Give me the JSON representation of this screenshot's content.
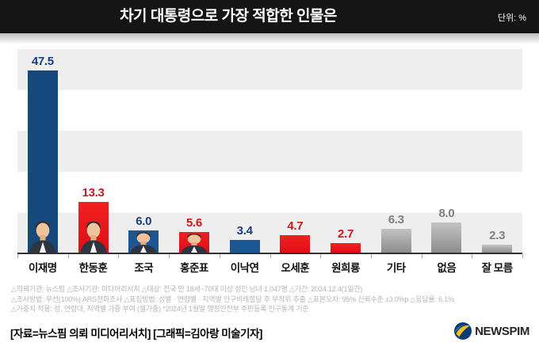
{
  "header": {
    "title": "차기 대통령으로 가장 적합한 인물은",
    "unit": "단위: %"
  },
  "chart_data": {
    "type": "bar",
    "title": "차기 대통령으로 가장 적합한 인물은",
    "unit": "%",
    "categories": [
      "이재명",
      "한동훈",
      "조국",
      "홍준표",
      "이낙연",
      "오세훈",
      "원희룡",
      "기타",
      "없음",
      "잘 모름"
    ],
    "values": [
      47.5,
      13.3,
      6.0,
      5.6,
      3.4,
      4.7,
      2.7,
      6.3,
      8.0,
      2.3
    ],
    "bar_styles": [
      "blue-dark",
      "red",
      "blue",
      "red",
      "blue",
      "red",
      "red",
      "gray",
      "gray",
      "gray"
    ],
    "has_photo": [
      true,
      true,
      true,
      true,
      false,
      false,
      false,
      false,
      false,
      false
    ],
    "ylim": [
      0,
      53
    ],
    "grid": "horizontal-stripes",
    "xlabel": "",
    "ylabel": ""
  },
  "colors": {
    "header_bg": "#151515",
    "stripe_gray": "#eeeeee",
    "bar_blue_dark": "#15497E",
    "bar_blue": "#1C5795",
    "bar_red": "#E6131B",
    "bar_gray_top": "#C3C3C3",
    "bar_gray_bottom": "#8A8A8A",
    "label_blue": "#1B3F7D",
    "label_red": "#D2161E",
    "label_gray": "#7F7F7F"
  },
  "footnotes": [
    "△의뢰기관: 뉴스핌  △조사기관: 미디어리서치  △대상: 전국 만 18세~70대 이상 성인 남녀 1,047명  △기간: 2024.12.4(1일간)",
    "△조사방법: 무선(100%) ARS전화조사  △표집방법: 성별 · 연령별 · 지역별 인구비례할당 후 무작위 추출  △표본오차: 95% 신뢰수준 ±3.0%p  △응답률: 6.1%",
    "△가중치 적용: 성, 연령대, 지역별 가중 부여 (셀가중) *2024년 1월말 행정안전부 주민등록 인구통계 기준"
  ],
  "credit": "[자료=뉴스핌 의뢰 미디어리서치] [그래픽=김아랑 미술기자]",
  "brand": {
    "name": "NEWSPIM"
  }
}
